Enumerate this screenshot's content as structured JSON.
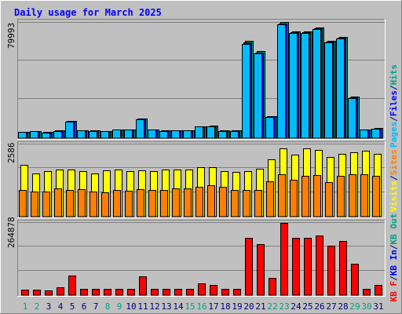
{
  "chart_data": {
    "type": "bar",
    "title": "Daily usage for March 2025",
    "categories": [
      "1",
      "2",
      "3",
      "4",
      "5",
      "6",
      "7",
      "8",
      "9",
      "10",
      "11",
      "12",
      "13",
      "14",
      "15",
      "16",
      "17",
      "18",
      "19",
      "20",
      "21",
      "22",
      "23",
      "24",
      "25",
      "26",
      "27",
      "28",
      "29",
      "30",
      "31"
    ],
    "weekend_days": [
      1,
      2,
      8,
      9,
      15,
      16,
      22,
      23,
      29,
      30
    ],
    "panels": [
      {
        "name": "hits-panel",
        "max_label": "79993",
        "ymax": 79993,
        "right_labels": [
          {
            "text": "Pages",
            "color": "#00bbff"
          },
          {
            "text": "/",
            "color": "#000080"
          },
          {
            "text": "Files",
            "color": "#0000ff"
          },
          {
            "text": "/",
            "color": "#000080"
          },
          {
            "text": "Hits",
            "color": "#00a080"
          }
        ],
        "series": [
          {
            "name": "Hits",
            "color": "#00a080",
            "values": [
              4500,
              4800,
              4200,
              5300,
              12000,
              5400,
              5300,
              5000,
              6200,
              6000,
              13600,
              6100,
              5300,
              5400,
              5400,
              8200,
              8400,
              5300,
              5300,
              67000,
              60000,
              15300,
              79993,
              73500,
              73500,
              76000,
              67000,
              69500,
              28500,
              6000,
              6800
            ]
          },
          {
            "name": "Files",
            "color": "#0000ff",
            "values": [
              4400,
              4700,
              4100,
              5200,
              11800,
              5300,
              5200,
              4900,
              6100,
              5900,
              13400,
              6000,
              5200,
              5300,
              5300,
              8100,
              8300,
              5200,
              5200,
              66000,
              59000,
              15000,
              79000,
              73000,
              73000,
              75500,
              66500,
              69000,
              28000,
              5900,
              6700
            ]
          },
          {
            "name": "Pages",
            "color": "#00bbff",
            "values": [
              4300,
              4600,
              4000,
              5100,
              11600,
              5200,
              5100,
              4800,
              6000,
              5800,
              13200,
              5900,
              5100,
              5200,
              5200,
              8000,
              8200,
              5100,
              5100,
              65000,
              58500,
              14800,
              78500,
              72500,
              72500,
              75000,
              66000,
              68500,
              27500,
              5800,
              6600
            ]
          }
        ]
      },
      {
        "name": "visits-panel",
        "max_label": "2586",
        "ymax": 2586,
        "right_labels": [
          {
            "text": "Visits",
            "color": "#ffff00"
          },
          {
            "text": "/",
            "color": "#000080"
          },
          {
            "text": "Sites",
            "color": "#ff8000"
          }
        ],
        "series": [
          {
            "name": "Visits",
            "color": "#ffff00",
            "values": [
              1860,
              1560,
              1640,
              1680,
              1680,
              1640,
              1560,
              1650,
              1680,
              1620,
              1650,
              1620,
              1680,
              1700,
              1680,
              1760,
              1760,
              1620,
              1590,
              1620,
              1720,
              2040,
              2450,
              2230,
              2450,
              2390,
              2150,
              2240,
              2300,
              2350,
              2240
            ]
          },
          {
            "name": "Sites",
            "color": "#ff8000",
            "values": [
              960,
              910,
              900,
              1000,
              960,
              990,
              910,
              880,
              960,
              940,
              980,
              950,
              950,
              1020,
              1000,
              1080,
              1120,
              1080,
              950,
              950,
              950,
              1260,
              1520,
              1320,
              1460,
              1500,
              1240,
              1470,
              1530,
              1520,
              1470
            ]
          }
        ]
      },
      {
        "name": "kbytes-panel",
        "max_label": "264878",
        "ymax": 264878,
        "right_labels": [
          {
            "text": "KB F",
            "color": "#ff0000"
          },
          {
            "text": "/",
            "color": "#000080"
          },
          {
            "text": "KB In",
            "color": "#0000ff"
          },
          {
            "text": "/",
            "color": "#000080"
          },
          {
            "text": "KB Out",
            "color": "#00a080"
          }
        ],
        "series": [
          {
            "name": "KB F",
            "color": "#ff0000",
            "values": [
              20000,
              19000,
              18000,
              28000,
              72000,
              24000,
              22000,
              22000,
              24000,
              24000,
              70000,
              24000,
              24000,
              23000,
              23000,
              42000,
              38000,
              22000,
              22000,
              210000,
              187000,
              63000,
              264878,
              210000,
              210000,
              218000,
              180000,
              200000,
              115000,
              23000,
              36000
            ]
          },
          {
            "name": "KB In",
            "color": "#0000ff",
            "values": [
              0,
              0,
              0,
              0,
              0,
              0,
              0,
              0,
              0,
              0,
              0,
              0,
              0,
              0,
              0,
              0,
              0,
              0,
              0,
              0,
              0,
              0,
              0,
              0,
              0,
              0,
              0,
              0,
              0,
              0,
              0
            ]
          },
          {
            "name": "KB Out",
            "color": "#00a080",
            "values": [
              0,
              0,
              0,
              0,
              0,
              0,
              0,
              0,
              0,
              0,
              0,
              0,
              0,
              0,
              0,
              0,
              0,
              0,
              0,
              0,
              0,
              0,
              0,
              0,
              0,
              0,
              0,
              0,
              0,
              0,
              0
            ]
          }
        ]
      }
    ]
  },
  "colors": {
    "background": "#c0c0c0",
    "title": "#0000ff",
    "gridline": "#808080",
    "weekday_label": "#000080",
    "weekend_label": "#00a080"
  }
}
